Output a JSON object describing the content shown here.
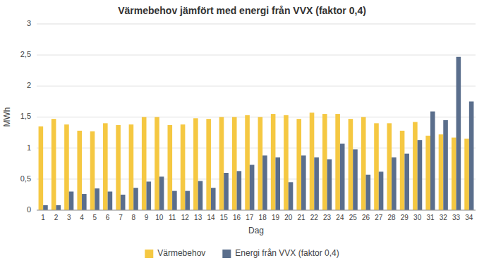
{
  "chart_data": {
    "type": "bar",
    "title": "Värmebehov jämfört med energi från VVX (faktor 0,4)",
    "xlabel": "Dag",
    "ylabel": "MWh",
    "categories": [
      1,
      2,
      3,
      4,
      5,
      6,
      7,
      8,
      9,
      10,
      11,
      12,
      13,
      14,
      15,
      16,
      17,
      18,
      19,
      20,
      21,
      22,
      23,
      24,
      25,
      26,
      27,
      28,
      29,
      30,
      31,
      32,
      33,
      34
    ],
    "series": [
      {
        "name": "Värmebehov",
        "color": "#F5C842",
        "values": [
          1.35,
          1.47,
          1.38,
          1.28,
          1.27,
          1.4,
          1.37,
          1.38,
          1.5,
          1.5,
          1.37,
          1.38,
          1.48,
          1.47,
          1.5,
          1.5,
          1.53,
          1.5,
          1.55,
          1.53,
          1.47,
          1.57,
          1.55,
          1.55,
          1.47,
          1.5,
          1.4,
          1.4,
          1.28,
          1.42,
          1.2,
          1.22,
          1.17,
          1.15
        ]
      },
      {
        "name": "Energi från VVX (faktor 0,4)",
        "color": "#5A6E8C",
        "values": [
          0.08,
          0.08,
          0.3,
          0.26,
          0.35,
          0.3,
          0.25,
          0.36,
          0.46,
          0.54,
          0.31,
          0.31,
          0.47,
          0.36,
          0.6,
          0.63,
          0.73,
          0.88,
          0.85,
          0.45,
          0.88,
          0.85,
          0.82,
          1.07,
          0.98,
          0.57,
          0.62,
          0.85,
          0.91,
          1.13,
          1.59,
          1.45,
          2.47,
          1.75
        ]
      }
    ],
    "ylim": [
      0,
      3.0
    ],
    "yticks": [
      0,
      {
        "value": 0.5,
        "label": "0,5"
      },
      1,
      {
        "value": 1.5,
        "label": "1,5"
      },
      2,
      {
        "value": 2.5,
        "label": "2,5"
      },
      3
    ],
    "grid": true,
    "legend": "bottom"
  }
}
